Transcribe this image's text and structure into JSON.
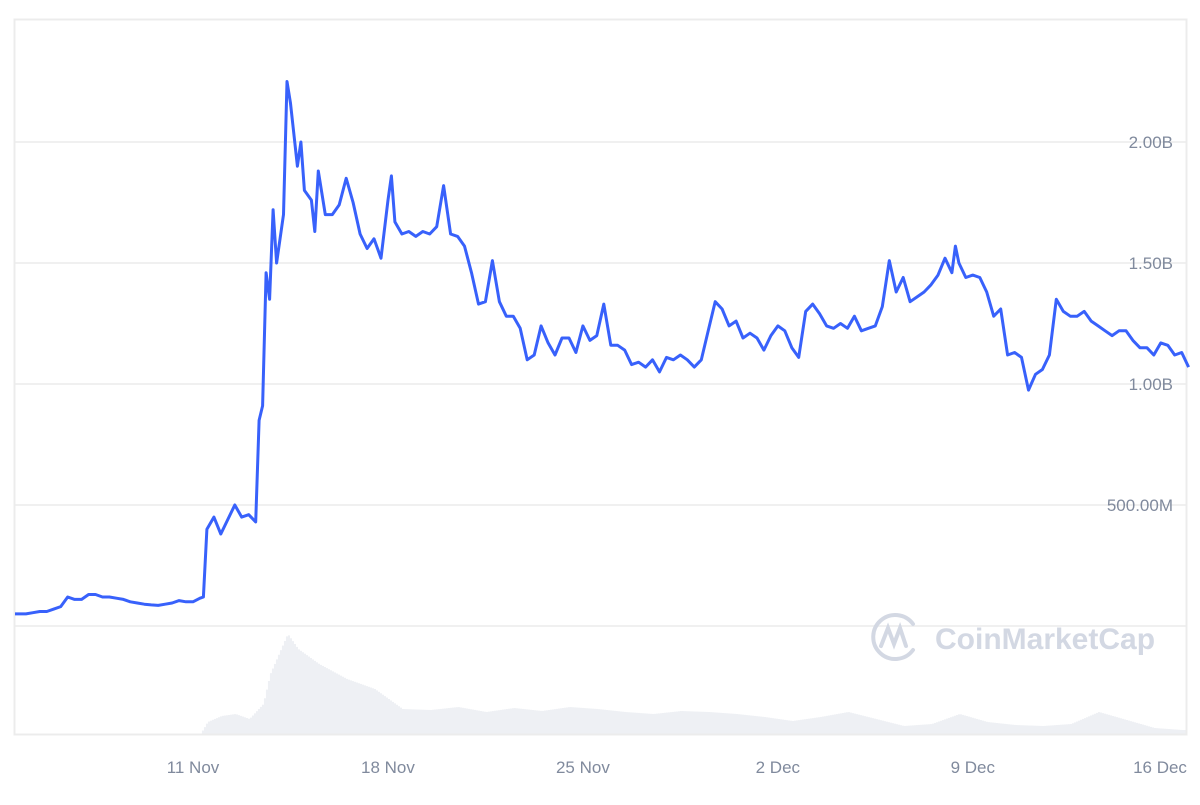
{
  "chart_data": {
    "type": "line",
    "title": "",
    "xlabel": "",
    "ylabel": "",
    "watermark": "CoinMarketCap",
    "colors": {
      "line": "#3861fb",
      "volume": "#eef0f4",
      "grid": "#f0f0f0",
      "text": "#808a9d",
      "watermark": "#d3d8e3"
    },
    "grid": true,
    "y_axis_position": "right",
    "ylim": [
      0,
      2.45
    ],
    "y_unit": "B",
    "y_ticks": [
      {
        "value": 0.5,
        "label": "500.00M"
      },
      {
        "value": 1.0,
        "label": "1.00B"
      },
      {
        "value": 1.5,
        "label": "1.50B"
      },
      {
        "value": 2.0,
        "label": "2.00B"
      }
    ],
    "x_ticks": [
      {
        "date": "Nov 11",
        "label": "11 Nov"
      },
      {
        "date": "Nov 18",
        "label": "18 Nov"
      },
      {
        "date": "Nov 25",
        "label": "25 Nov"
      },
      {
        "date": "Dec 2",
        "label": "2 Dec"
      },
      {
        "date": "Dec 9",
        "label": "9 Dec"
      },
      {
        "date": "Dec 16",
        "label": "16 Dec"
      }
    ],
    "xlim": [
      "Nov 4 12:00",
      "Dec 16 18:00"
    ],
    "series": [
      {
        "points": [
          [
            "Nov 4 12:00",
            0.05
          ],
          [
            "Nov 4 18:00",
            0.05
          ],
          [
            "Nov 5 00:00",
            0.05
          ],
          [
            "Nov 5 06:00",
            0.055
          ],
          [
            "Nov 5 12:00",
            0.06
          ],
          [
            "Nov 5 18:00",
            0.06
          ],
          [
            "Nov 6 00:00",
            0.07
          ],
          [
            "Nov 6 06:00",
            0.08
          ],
          [
            "Nov 6 12:00",
            0.12
          ],
          [
            "Nov 6 18:00",
            0.11
          ],
          [
            "Nov 7 00:00",
            0.11
          ],
          [
            "Nov 7 06:00",
            0.13
          ],
          [
            "Nov 7 12:00",
            0.13
          ],
          [
            "Nov 7 18:00",
            0.12
          ],
          [
            "Nov 8 00:00",
            0.12
          ],
          [
            "Nov 8 06:00",
            0.115
          ],
          [
            "Nov 8 12:00",
            0.11
          ],
          [
            "Nov 8 18:00",
            0.1
          ],
          [
            "Nov 9 00:00",
            0.095
          ],
          [
            "Nov 9 06:00",
            0.09
          ],
          [
            "Nov 9 12:00",
            0.087
          ],
          [
            "Nov 9 18:00",
            0.085
          ],
          [
            "Nov 10 00:00",
            0.09
          ],
          [
            "Nov 10 06:00",
            0.095
          ],
          [
            "Nov 10 12:00",
            0.105
          ],
          [
            "Nov 10 18:00",
            0.1
          ],
          [
            "Nov 11 00:00",
            0.1
          ],
          [
            "Nov 11 06:00",
            0.115
          ],
          [
            "Nov 11 09:00",
            0.12
          ],
          [
            "Nov 11 12:00",
            0.4
          ],
          [
            "Nov 11 18:00",
            0.45
          ],
          [
            "Nov 12 00:00",
            0.38
          ],
          [
            "Nov 12 06:00",
            0.44
          ],
          [
            "Nov 12 12:00",
            0.5
          ],
          [
            "Nov 12 18:00",
            0.45
          ],
          [
            "Nov 13 00:00",
            0.46
          ],
          [
            "Nov 13 06:00",
            0.43
          ],
          [
            "Nov 13 09:00",
            0.85
          ],
          [
            "Nov 13 12:00",
            0.91
          ],
          [
            "Nov 13 15:00",
            1.46
          ],
          [
            "Nov 13 18:00",
            1.35
          ],
          [
            "Nov 13 21:00",
            1.72
          ],
          [
            "Nov 14 00:00",
            1.5
          ],
          [
            "Nov 14 06:00",
            1.7
          ],
          [
            "Nov 14 09:00",
            2.25
          ],
          [
            "Nov 14 12:00",
            2.16
          ],
          [
            "Nov 14 18:00",
            1.9
          ],
          [
            "Nov 14 21:00",
            2.0
          ],
          [
            "Nov 15 00:00",
            1.8
          ],
          [
            "Nov 15 06:00",
            1.76
          ],
          [
            "Nov 15 09:00",
            1.63
          ],
          [
            "Nov 15 12:00",
            1.88
          ],
          [
            "Nov 15 18:00",
            1.7
          ],
          [
            "Nov 16 00:00",
            1.7
          ],
          [
            "Nov 16 06:00",
            1.74
          ],
          [
            "Nov 16 12:00",
            1.85
          ],
          [
            "Nov 16 18:00",
            1.75
          ],
          [
            "Nov 17 00:00",
            1.62
          ],
          [
            "Nov 17 06:00",
            1.56
          ],
          [
            "Nov 17 12:00",
            1.6
          ],
          [
            "Nov 17 18:00",
            1.52
          ],
          [
            "Nov 18 00:00",
            1.76
          ],
          [
            "Nov 18 03:00",
            1.86
          ],
          [
            "Nov 18 06:00",
            1.67
          ],
          [
            "Nov 18 12:00",
            1.62
          ],
          [
            "Nov 18 18:00",
            1.63
          ],
          [
            "Nov 19 00:00",
            1.61
          ],
          [
            "Nov 19 06:00",
            1.63
          ],
          [
            "Nov 19 12:00",
            1.62
          ],
          [
            "Nov 19 18:00",
            1.65
          ],
          [
            "Nov 20 00:00",
            1.82
          ],
          [
            "Nov 20 06:00",
            1.62
          ],
          [
            "Nov 20 12:00",
            1.61
          ],
          [
            "Nov 20 18:00",
            1.57
          ],
          [
            "Nov 21 00:00",
            1.46
          ],
          [
            "Nov 21 06:00",
            1.33
          ],
          [
            "Nov 21 12:00",
            1.34
          ],
          [
            "Nov 21 18:00",
            1.51
          ],
          [
            "Nov 22 00:00",
            1.34
          ],
          [
            "Nov 22 06:00",
            1.28
          ],
          [
            "Nov 22 12:00",
            1.28
          ],
          [
            "Nov 22 18:00",
            1.23
          ],
          [
            "Nov 23 00:00",
            1.1
          ],
          [
            "Nov 23 06:00",
            1.12
          ],
          [
            "Nov 23 12:00",
            1.24
          ],
          [
            "Nov 23 18:00",
            1.17
          ],
          [
            "Nov 24 00:00",
            1.12
          ],
          [
            "Nov 24 06:00",
            1.19
          ],
          [
            "Nov 24 12:00",
            1.19
          ],
          [
            "Nov 24 18:00",
            1.13
          ],
          [
            "Nov 25 00:00",
            1.24
          ],
          [
            "Nov 25 06:00",
            1.18
          ],
          [
            "Nov 25 12:00",
            1.2
          ],
          [
            "Nov 25 18:00",
            1.33
          ],
          [
            "Nov 26 00:00",
            1.16
          ],
          [
            "Nov 26 06:00",
            1.16
          ],
          [
            "Nov 26 12:00",
            1.14
          ],
          [
            "Nov 26 18:00",
            1.08
          ],
          [
            "Nov 27 00:00",
            1.09
          ],
          [
            "Nov 27 06:00",
            1.07
          ],
          [
            "Nov 27 12:00",
            1.1
          ],
          [
            "Nov 27 18:00",
            1.05
          ],
          [
            "Nov 28 00:00",
            1.11
          ],
          [
            "Nov 28 06:00",
            1.1
          ],
          [
            "Nov 28 12:00",
            1.12
          ],
          [
            "Nov 28 18:00",
            1.1
          ],
          [
            "Nov 29 00:00",
            1.07
          ],
          [
            "Nov 29 06:00",
            1.1
          ],
          [
            "Nov 29 12:00",
            1.22
          ],
          [
            "Nov 29 18:00",
            1.34
          ],
          [
            "Nov 30 00:00",
            1.31
          ],
          [
            "Nov 30 06:00",
            1.24
          ],
          [
            "Nov 30 12:00",
            1.26
          ],
          [
            "Nov 30 18:00",
            1.19
          ],
          [
            "Dec 1 00:00",
            1.21
          ],
          [
            "Dec 1 06:00",
            1.19
          ],
          [
            "Dec 1 12:00",
            1.14
          ],
          [
            "Dec 1 18:00",
            1.2
          ],
          [
            "Dec 2 00:00",
            1.24
          ],
          [
            "Dec 2 06:00",
            1.22
          ],
          [
            "Dec 2 12:00",
            1.15
          ],
          [
            "Dec 2 18:00",
            1.11
          ],
          [
            "Dec 3 00:00",
            1.3
          ],
          [
            "Dec 3 06:00",
            1.33
          ],
          [
            "Dec 3 12:00",
            1.29
          ],
          [
            "Dec 3 18:00",
            1.24
          ],
          [
            "Dec 4 00:00",
            1.23
          ],
          [
            "Dec 4 06:00",
            1.25
          ],
          [
            "Dec 4 12:00",
            1.23
          ],
          [
            "Dec 4 18:00",
            1.28
          ],
          [
            "Dec 5 00:00",
            1.22
          ],
          [
            "Dec 5 06:00",
            1.23
          ],
          [
            "Dec 5 12:00",
            1.24
          ],
          [
            "Dec 5 18:00",
            1.32
          ],
          [
            "Dec 6 00:00",
            1.51
          ],
          [
            "Dec 6 06:00",
            1.38
          ],
          [
            "Dec 6 12:00",
            1.44
          ],
          [
            "Dec 6 18:00",
            1.34
          ],
          [
            "Dec 7 00:00",
            1.36
          ],
          [
            "Dec 7 06:00",
            1.38
          ],
          [
            "Dec 7 12:00",
            1.41
          ],
          [
            "Dec 7 18:00",
            1.45
          ],
          [
            "Dec 8 00:00",
            1.52
          ],
          [
            "Dec 8 06:00",
            1.46
          ],
          [
            "Dec 8 09:00",
            1.57
          ],
          [
            "Dec 8 12:00",
            1.5
          ],
          [
            "Dec 8 18:00",
            1.44
          ],
          [
            "Dec 9 00:00",
            1.45
          ],
          [
            "Dec 9 06:00",
            1.44
          ],
          [
            "Dec 9 12:00",
            1.38
          ],
          [
            "Dec 9 18:00",
            1.28
          ],
          [
            "Dec 10 00:00",
            1.31
          ],
          [
            "Dec 10 06:00",
            1.12
          ],
          [
            "Dec 10 12:00",
            1.13
          ],
          [
            "Dec 10 18:00",
            1.11
          ],
          [
            "Dec 11 00:00",
            0.975
          ],
          [
            "Dec 11 06:00",
            1.04
          ],
          [
            "Dec 11 12:00",
            1.06
          ],
          [
            "Dec 11 18:00",
            1.12
          ],
          [
            "Dec 12 00:00",
            1.35
          ],
          [
            "Dec 12 06:00",
            1.3
          ],
          [
            "Dec 12 12:00",
            1.28
          ],
          [
            "Dec 12 18:00",
            1.28
          ],
          [
            "Dec 13 00:00",
            1.3
          ],
          [
            "Dec 13 06:00",
            1.26
          ],
          [
            "Dec 13 12:00",
            1.24
          ],
          [
            "Dec 13 18:00",
            1.22
          ],
          [
            "Dec 14 00:00",
            1.2
          ],
          [
            "Dec 14 06:00",
            1.22
          ],
          [
            "Dec 14 12:00",
            1.22
          ],
          [
            "Dec 14 18:00",
            1.18
          ],
          [
            "Dec 15 00:00",
            1.15
          ],
          [
            "Dec 15 06:00",
            1.15
          ],
          [
            "Dec 15 12:00",
            1.12
          ],
          [
            "Dec 15 18:00",
            1.17
          ],
          [
            "Dec 16 00:00",
            1.16
          ],
          [
            "Dec 16 06:00",
            1.12
          ],
          [
            "Dec 16 12:00",
            1.13
          ],
          [
            "Dec 16 18:00",
            1.07
          ]
        ]
      }
    ],
    "volume_relative": [
      [
        "Nov 11 06:00",
        0
      ],
      [
        "Nov 11 12:00",
        0.12
      ],
      [
        "Nov 12 00:00",
        0.18
      ],
      [
        "Nov 12 12:00",
        0.2
      ],
      [
        "Nov 13 00:00",
        0.15
      ],
      [
        "Nov 13 12:00",
        0.3
      ],
      [
        "Nov 13 18:00",
        0.6
      ],
      [
        "Nov 14 09:00",
        1.0
      ],
      [
        "Nov 14 18:00",
        0.85
      ],
      [
        "Nov 15 12:00",
        0.7
      ],
      [
        "Nov 16 12:00",
        0.55
      ],
      [
        "Nov 17 12:00",
        0.45
      ],
      [
        "Nov 18 12:00",
        0.25
      ],
      [
        "Nov 19 12:00",
        0.24
      ],
      [
        "Nov 20 12:00",
        0.27
      ],
      [
        "Nov 21 12:00",
        0.22
      ],
      [
        "Nov 22 12:00",
        0.26
      ],
      [
        "Nov 23 12:00",
        0.23
      ],
      [
        "Nov 24 12:00",
        0.27
      ],
      [
        "Nov 25 12:00",
        0.25
      ],
      [
        "Nov 26 12:00",
        0.22
      ],
      [
        "Nov 27 12:00",
        0.2
      ],
      [
        "Nov 28 12:00",
        0.23
      ],
      [
        "Nov 29 12:00",
        0.22
      ],
      [
        "Nov 30 12:00",
        0.2
      ],
      [
        "Dec 1 12:00",
        0.17
      ],
      [
        "Dec 2 12:00",
        0.13
      ],
      [
        "Dec 3 12:00",
        0.17
      ],
      [
        "Dec 4 12:00",
        0.22
      ],
      [
        "Dec 5 12:00",
        0.15
      ],
      [
        "Dec 6 12:00",
        0.08
      ],
      [
        "Dec 7 12:00",
        0.1
      ],
      [
        "Dec 8 12:00",
        0.2
      ],
      [
        "Dec 9 12:00",
        0.12
      ],
      [
        "Dec 10 12:00",
        0.09
      ],
      [
        "Dec 11 12:00",
        0.08
      ],
      [
        "Dec 12 12:00",
        0.1
      ],
      [
        "Dec 13 12:00",
        0.22
      ],
      [
        "Dec 14 12:00",
        0.14
      ],
      [
        "Dec 15 12:00",
        0.06
      ],
      [
        "Dec 16 12:00",
        0.04
      ],
      [
        "Dec 16 18:00",
        0.04
      ]
    ]
  }
}
